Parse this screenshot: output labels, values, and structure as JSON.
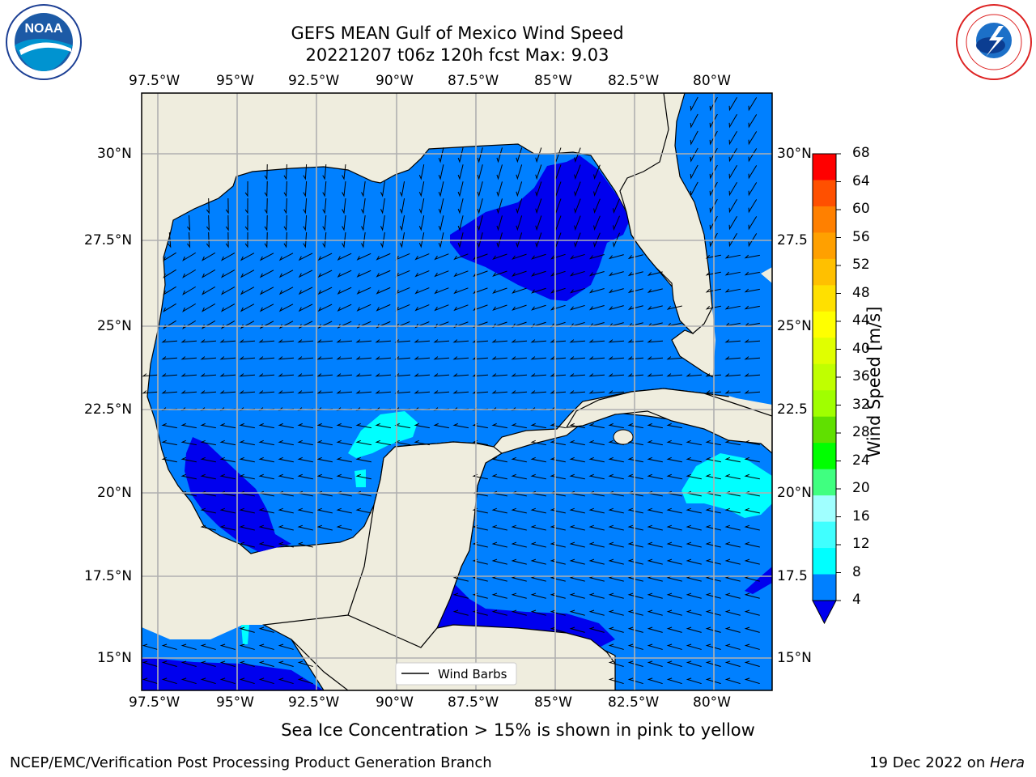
{
  "title": {
    "line1": "GEFS MEAN Gulf of Mexico Wind Speed",
    "line2": "20221207 t06z 120h fcst   Max: 9.03"
  },
  "map": {
    "lon_labels": [
      "97.5°W",
      "95°W",
      "92.5°W",
      "90°W",
      "87.5°W",
      "85°W",
      "82.5°W",
      "80°W"
    ],
    "lat_labels": [
      "30°N",
      "27.5°N",
      "25°N",
      "22.5°N",
      "20°N",
      "17.5°N",
      "15°N"
    ],
    "lat_labels_right": [
      "30°N",
      "27.5",
      "25°N",
      "22.5",
      "20°N",
      "17.5",
      "15°N"
    ],
    "legend_label": "Wind Barbs",
    "land_color": "#efedde",
    "ocean_colors": {
      "4-8": "#0080ff",
      "below_4": "#0000ee",
      "8-12": "#00ffff"
    }
  },
  "colorbar": {
    "label": "Wind Speed [m/s]",
    "ticks": [
      "68",
      "64",
      "60",
      "56",
      "52",
      "48",
      "44",
      "40",
      "36",
      "32",
      "28",
      "24",
      "20",
      "16",
      "12",
      "8",
      "4"
    ],
    "colors": [
      "#ff0000",
      "#ff2000",
      "#ff5000",
      "#ff8000",
      "#ffa000",
      "#ffc000",
      "#ffe000",
      "#ffff00",
      "#e0ff00",
      "#c0ff00",
      "#a0ff00",
      "#60e000",
      "#00ff00",
      "#40ff80",
      "#a0ffff",
      "#40ffff",
      "#00ffff",
      "#0080ff"
    ],
    "extend_color": "#0000ee"
  },
  "subtitle": "Sea Ice Concentration > 15% is shown in pink to yellow",
  "footer": {
    "left": "NCEP/EMC/Verification Post Processing Product Generation Branch",
    "date": "19 Dec 2022 on ",
    "machine": "Hera"
  },
  "logos": {
    "left": "noaa-logo",
    "right": "nws-logo",
    "noaa_text": "NOAA"
  }
}
